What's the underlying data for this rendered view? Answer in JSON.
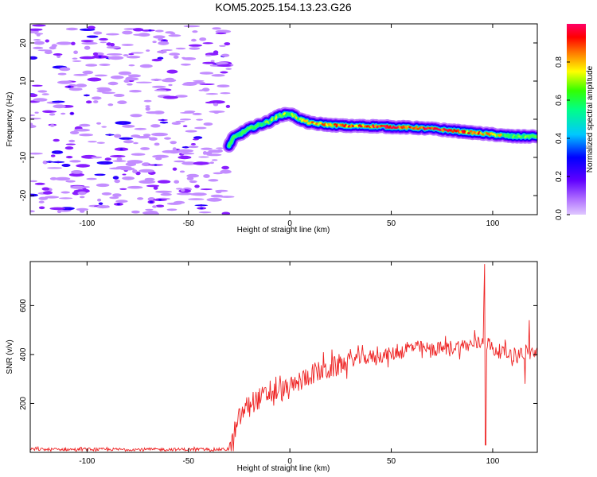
{
  "chart_data": [
    {
      "type": "heatmap",
      "title": "KOM5.2025.154.13.23.G26",
      "xlabel": "Height of straight line (km)",
      "ylabel": "Frequency (Hz)",
      "xlim": [
        -128,
        122
      ],
      "ylim": [
        -25,
        25
      ],
      "xticks": [
        "-100",
        "-50",
        "0",
        "50",
        "100"
      ],
      "xtick_values": [
        -100,
        -50,
        0,
        50,
        100
      ],
      "yticks": [
        "20",
        "10",
        "0",
        "-10",
        "-20"
      ],
      "ytick_values": [
        20,
        10,
        0,
        -10,
        -20
      ],
      "colorbar": {
        "label": "Normalized spectral amplitude",
        "range": [
          0,
          1
        ],
        "ticks": [
          "0.0",
          "0.2",
          "0.4",
          "0.6",
          "0.8"
        ],
        "tick_values": [
          0.0,
          0.2,
          0.4,
          0.6,
          0.8
        ],
        "colors": [
          "#d6b3ff",
          "#7a00ff",
          "#0000ff",
          "#00c8ff",
          "#00ff66",
          "#ffff00",
          "#ff0000",
          "#ff0066"
        ]
      },
      "signal_track": {
        "note_x_start_km": -30,
        "x": [
          -30,
          -28,
          -25,
          -20,
          -15,
          -10,
          -5,
          0,
          5,
          10,
          20,
          30,
          40,
          50,
          60,
          70,
          80,
          90,
          100,
          110,
          120
        ],
        "y": [
          -7,
          -5,
          -4,
          -2.5,
          -1.5,
          -0.5,
          1,
          1.5,
          0,
          -1,
          -1.5,
          -1.8,
          -1.8,
          -2,
          -2.2,
          -2.5,
          -3,
          -3.5,
          -4,
          -4.5,
          -4.5
        ],
        "amplitude": [
          0.3,
          0.4,
          0.45,
          0.5,
          0.5,
          0.55,
          0.6,
          0.65,
          0.6,
          0.7,
          0.75,
          0.8,
          0.85,
          0.9,
          0.85,
          0.9,
          0.85,
          0.8,
          0.7,
          0.6,
          0.5
        ]
      },
      "noise_region_x": [
        -128,
        -30
      ]
    },
    {
      "type": "line",
      "xlabel": "Height of straight line (km)",
      "ylabel": "SNR (v/v)",
      "xlim": [
        -128,
        122
      ],
      "ylim": [
        0,
        780
      ],
      "xticks": [
        "-100",
        "-50",
        "0",
        "50",
        "100"
      ],
      "xtick_values": [
        -100,
        -50,
        0,
        50,
        100
      ],
      "yticks": [
        "200",
        "400",
        "600"
      ],
      "ytick_values": [
        200,
        400,
        600
      ],
      "color": "#ee2222",
      "trend": {
        "x": [
          -128,
          -30,
          -28,
          -25,
          -20,
          -10,
          0,
          10,
          20,
          30,
          40,
          50,
          60,
          70,
          80,
          90,
          95,
          97,
          100,
          110,
          122
        ],
        "y": [
          12,
          12,
          40,
          140,
          200,
          240,
          260,
          320,
          340,
          380,
          390,
          400,
          430,
          420,
          430,
          440,
          450,
          460,
          420,
          400,
          410
        ]
      },
      "spikes": [
        {
          "x": 96,
          "y": 770
        },
        {
          "x": 95.5,
          "y": 630
        },
        {
          "x": 96.5,
          "y": 30
        },
        {
          "x": 91,
          "y": 500
        },
        {
          "x": 118,
          "y": 540
        },
        {
          "x": 116,
          "y": 280
        }
      ]
    }
  ]
}
